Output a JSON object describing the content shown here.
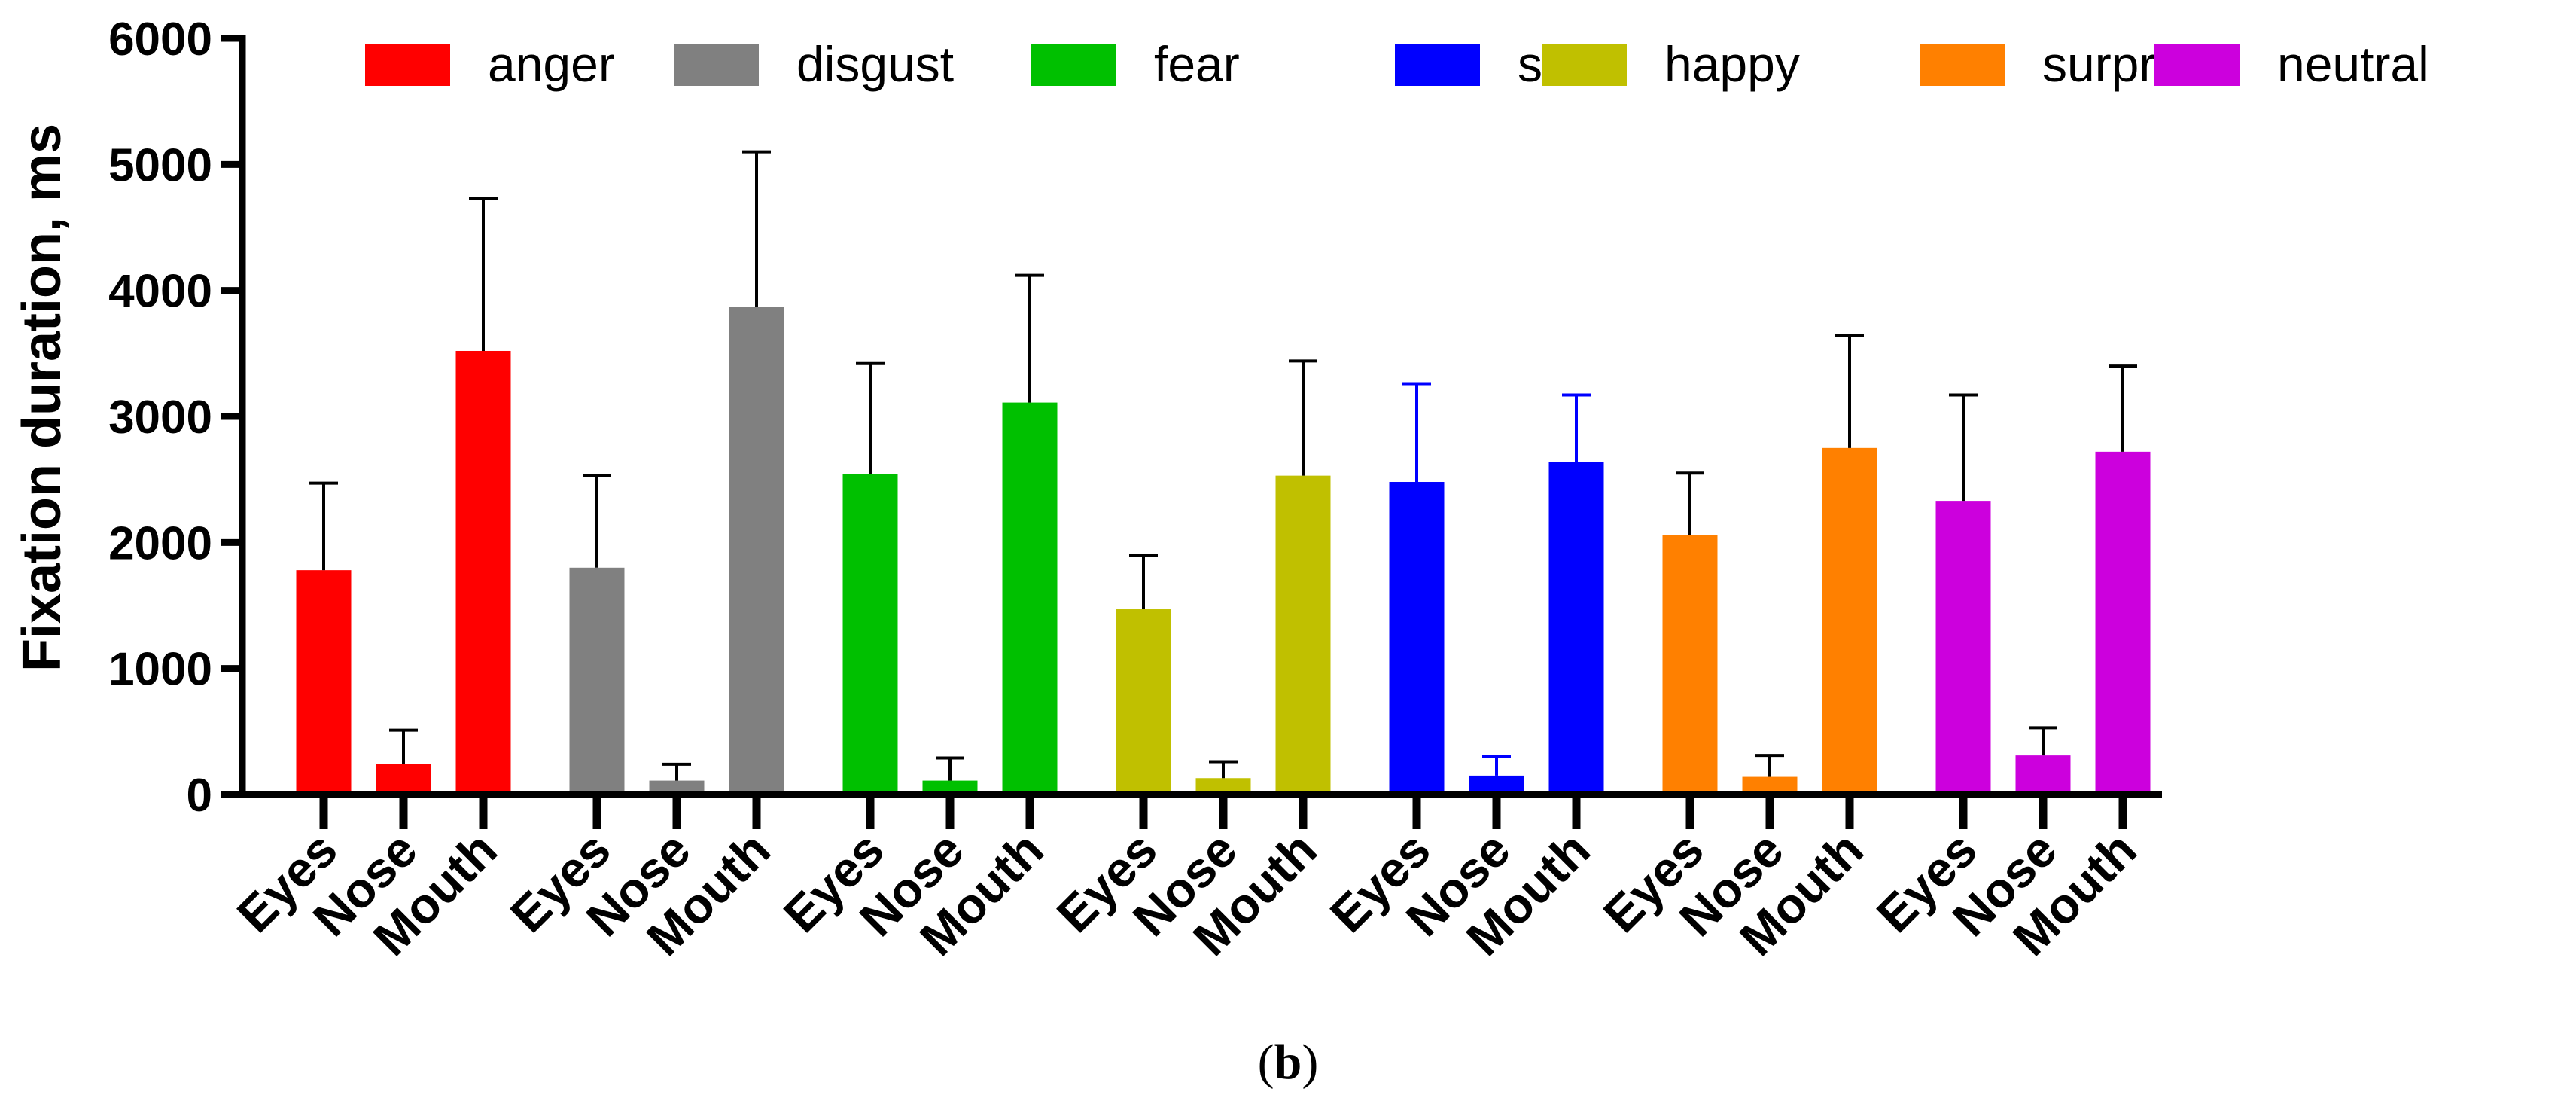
{
  "chart_data": {
    "type": "bar",
    "ylabel": "Fixation duration, ms",
    "ylim": [
      0,
      6000
    ],
    "yticks": [
      0,
      1000,
      2000,
      3000,
      4000,
      5000,
      6000
    ],
    "categories": [
      "Eyes",
      "Nose",
      "Mouth"
    ],
    "series": [
      {
        "name": "anger",
        "color": "#ff0000",
        "values": [
          1780,
          240,
          3520
        ],
        "errors": [
          690,
          270,
          1210
        ]
      },
      {
        "name": "disgust",
        "color": "#808080",
        "values": [
          1800,
          110,
          3870
        ],
        "errors": [
          730,
          130,
          1230
        ]
      },
      {
        "name": "fear",
        "color": "#00c000",
        "values": [
          2540,
          110,
          3110
        ],
        "errors": [
          880,
          180,
          1010
        ]
      },
      {
        "name": "sad",
        "color": "#0000ff",
        "values": [
          2480,
          150,
          2640
        ],
        "errors": [
          780,
          150,
          530
        ]
      },
      {
        "name": "happy",
        "color": "#c0c000",
        "values": [
          1470,
          130,
          2530
        ],
        "errors": [
          430,
          130,
          910
        ]
      },
      {
        "name": "surprise",
        "color": "#ff8000",
        "values": [
          2060,
          140,
          2750
        ],
        "errors": [
          490,
          170,
          890
        ]
      },
      {
        "name": "neutral",
        "color": "#cc00dd",
        "values": [
          2330,
          310,
          2720
        ],
        "errors": [
          840,
          220,
          680
        ]
      }
    ],
    "group_order": [
      "anger",
      "disgust",
      "fear",
      "happy",
      "sad",
      "surprise",
      "neutral"
    ],
    "legend_position": "top"
  },
  "caption": {
    "open": "(",
    "letter": "b",
    "close": ")"
  }
}
